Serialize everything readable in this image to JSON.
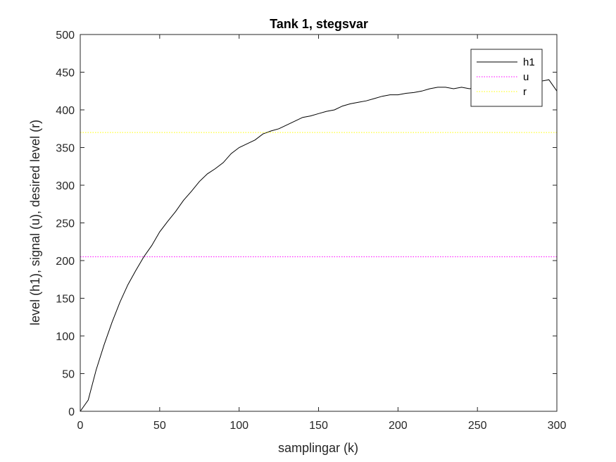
{
  "chart_data": {
    "type": "line",
    "title": "Tank 1, stegsvar",
    "xlabel": "samplingar (k)",
    "ylabel": "level (h1), signal (u), desired level (r)",
    "xlim": [
      0,
      300
    ],
    "ylim": [
      0,
      500
    ],
    "xticks": [
      0,
      50,
      100,
      150,
      200,
      250,
      300
    ],
    "yticks": [
      0,
      50,
      100,
      150,
      200,
      250,
      300,
      350,
      400,
      450,
      500
    ],
    "grid": false,
    "legend_position": "top-right",
    "colors": {
      "h1": "#000000",
      "u": "#ff00ff",
      "r": "#ffff00"
    },
    "series": [
      {
        "name": "h1",
        "style": "solid",
        "x": [
          0,
          5,
          10,
          15,
          20,
          25,
          30,
          35,
          40,
          45,
          50,
          55,
          60,
          65,
          70,
          75,
          80,
          85,
          90,
          95,
          100,
          105,
          110,
          115,
          120,
          125,
          130,
          135,
          140,
          145,
          150,
          155,
          160,
          165,
          170,
          175,
          180,
          185,
          190,
          195,
          200,
          205,
          210,
          215,
          220,
          225,
          230,
          235,
          240,
          245,
          250,
          255,
          260,
          265,
          270,
          275,
          280,
          285,
          290,
          295,
          300
        ],
        "y": [
          0,
          15,
          55,
          88,
          118,
          145,
          168,
          187,
          205,
          220,
          238,
          252,
          265,
          280,
          292,
          305,
          315,
          322,
          330,
          342,
          350,
          355,
          360,
          368,
          372,
          375,
          380,
          385,
          390,
          392,
          395,
          398,
          400,
          405,
          408,
          410,
          412,
          415,
          418,
          420,
          420,
          422,
          423,
          425,
          428,
          430,
          430,
          428,
          430,
          428,
          430,
          428,
          430,
          432,
          430,
          432,
          432,
          435,
          438,
          440,
          425
        ]
      },
      {
        "name": "u",
        "style": "dotted",
        "x": [
          0,
          300
        ],
        "y": [
          205,
          205
        ]
      },
      {
        "name": "r",
        "style": "dotted",
        "x": [
          0,
          300
        ],
        "y": [
          370,
          370
        ]
      }
    ]
  }
}
